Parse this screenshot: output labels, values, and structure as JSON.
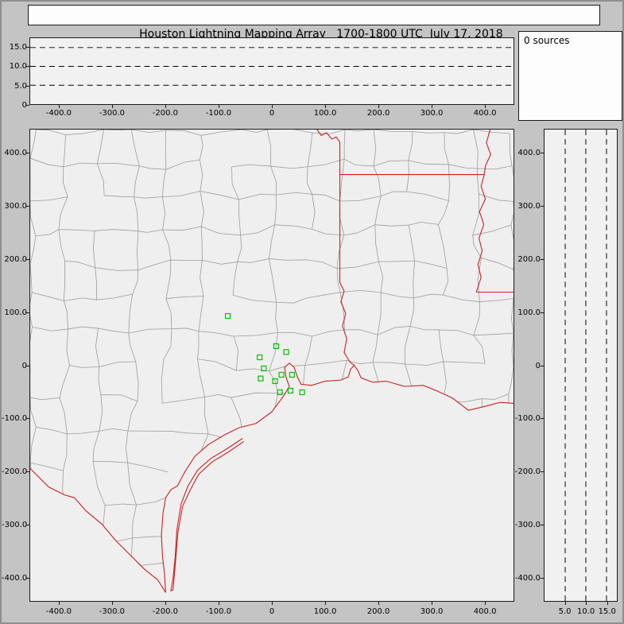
{
  "title": "Houston Lightning Mapping Array   1700-1800 UTC  July 17, 2018",
  "sources_panel": {
    "label": "0 sources",
    "count": 0
  },
  "colors": {
    "window_bg": "#c4c4c4",
    "panel_bg": "#f1f1f1",
    "panel_border": "#1a1a1a",
    "county_line": "#9c9c9c",
    "state_line": "#cc2020",
    "station": "#00c000",
    "gridline": "#000000"
  },
  "chart_data": [
    {
      "name": "altitude-vs-east-west",
      "type": "scatter",
      "xlim": [
        -455,
        455
      ],
      "ylim": [
        0,
        17.5
      ],
      "x_tick_values": [
        -400,
        -300,
        -200,
        -100,
        0,
        100,
        200,
        300,
        400
      ],
      "x_tick_labels": [
        "-400.0",
        "-300.0",
        "-200.0",
        "-100.0",
        "0",
        "100.0",
        "200.0",
        "300.0",
        "400.0"
      ],
      "y_tick_values": [
        15,
        10,
        5,
        0
      ],
      "y_tick_labels": [
        "15.0",
        "10.0",
        "5.0",
        "0"
      ],
      "gridlines": [
        5,
        10,
        15
      ],
      "grid_style": "dashed",
      "points": [],
      "sources": 0
    },
    {
      "name": "plan-view-map",
      "type": "scatter",
      "xlim": [
        -455,
        455
      ],
      "ylim": [
        -445,
        445
      ],
      "x_tick_values": [
        -400,
        -300,
        -200,
        -100,
        0,
        100,
        200,
        300,
        400
      ],
      "x_tick_labels": [
        "-400.0",
        "-300.0",
        "-200.0",
        "-100.0",
        "0",
        "100.0",
        "200.0",
        "300.0",
        "400.0"
      ],
      "y_tick_values": [
        400,
        300,
        200,
        100,
        0,
        -100,
        -200,
        -300,
        -400
      ],
      "y_tick_labels": [
        "400.0",
        "300.0",
        "200.0",
        "100.0",
        "0",
        "-100.0",
        "-200.0",
        "-300.0",
        "-400.0"
      ],
      "points": [],
      "stations_km": [
        [
          -83,
          93
        ],
        [
          8,
          36
        ],
        [
          -23,
          15
        ],
        [
          27,
          25
        ],
        [
          -15,
          -6
        ],
        [
          -21,
          -25
        ],
        [
          6,
          -30
        ],
        [
          18,
          -18
        ],
        [
          38,
          -18
        ],
        [
          15,
          -51
        ],
        [
          35,
          -48
        ],
        [
          57,
          -51
        ]
      ],
      "map_features_km": {
        "land_outline": [
          [
            -455,
            445
          ],
          [
            455,
            445
          ],
          [
            455,
            -72
          ],
          [
            430,
            -70
          ],
          [
            400,
            -78
          ],
          [
            370,
            -85
          ],
          [
            340,
            -62
          ],
          [
            310,
            -48
          ],
          [
            285,
            -38
          ],
          [
            250,
            -40
          ],
          [
            215,
            -30
          ],
          [
            190,
            -32
          ],
          [
            168,
            -24
          ],
          [
            162,
            -10
          ],
          [
            155,
            0
          ],
          [
            148,
            -8
          ],
          [
            144,
            -22
          ],
          [
            130,
            -28
          ],
          [
            100,
            -30
          ],
          [
            75,
            -38
          ],
          [
            55,
            -36
          ],
          [
            48,
            -22
          ],
          [
            42,
            -4
          ],
          [
            33,
            4
          ],
          [
            24,
            -4
          ],
          [
            27,
            -24
          ],
          [
            33,
            -40
          ],
          [
            22,
            -58
          ],
          [
            0,
            -88
          ],
          [
            -30,
            -110
          ],
          [
            -62,
            -118
          ],
          [
            -90,
            -132
          ],
          [
            -120,
            -150
          ],
          [
            -145,
            -172
          ],
          [
            -163,
            -200
          ],
          [
            -178,
            -228
          ],
          [
            -190,
            -235
          ],
          [
            -200,
            -250
          ],
          [
            -205,
            -280
          ],
          [
            -208,
            -320
          ],
          [
            -206,
            -360
          ],
          [
            -202,
            -395
          ],
          [
            -200,
            -429
          ],
          [
            -215,
            -405
          ],
          [
            -240,
            -385
          ],
          [
            -270,
            -355
          ],
          [
            -295,
            -330
          ],
          [
            -320,
            -300
          ],
          [
            -350,
            -275
          ],
          [
            -372,
            -250
          ],
          [
            -390,
            -245
          ],
          [
            -420,
            -230
          ],
          [
            -455,
            -195
          ]
        ],
        "coastline": [
          [
            455,
            -72
          ],
          [
            430,
            -70
          ],
          [
            400,
            -78
          ],
          [
            370,
            -85
          ],
          [
            340,
            -62
          ],
          [
            310,
            -48
          ],
          [
            285,
            -38
          ],
          [
            250,
            -40
          ],
          [
            215,
            -30
          ],
          [
            190,
            -32
          ],
          [
            168,
            -24
          ],
          [
            162,
            -10
          ],
          [
            155,
            0
          ],
          [
            148,
            -8
          ],
          [
            144,
            -22
          ],
          [
            130,
            -28
          ],
          [
            100,
            -30
          ],
          [
            75,
            -38
          ],
          [
            55,
            -36
          ],
          [
            48,
            -22
          ],
          [
            42,
            -4
          ],
          [
            33,
            4
          ],
          [
            24,
            -4
          ],
          [
            27,
            -24
          ],
          [
            33,
            -40
          ],
          [
            22,
            -58
          ],
          [
            0,
            -88
          ],
          [
            -30,
            -110
          ],
          [
            -62,
            -118
          ],
          [
            -90,
            -132
          ],
          [
            -120,
            -150
          ],
          [
            -145,
            -172
          ],
          [
            -163,
            -200
          ],
          [
            -178,
            -228
          ],
          [
            -190,
            -235
          ],
          [
            -200,
            -250
          ],
          [
            -205,
            -280
          ],
          [
            -208,
            -320
          ],
          [
            -206,
            -360
          ],
          [
            -202,
            -395
          ],
          [
            -200,
            -429
          ]
        ],
        "rio_grande": [
          [
            -200,
            -429
          ],
          [
            -215,
            -405
          ],
          [
            -240,
            -385
          ],
          [
            -270,
            -355
          ],
          [
            -295,
            -330
          ],
          [
            -320,
            -300
          ],
          [
            -350,
            -275
          ],
          [
            -372,
            -250
          ],
          [
            -390,
            -245
          ],
          [
            -420,
            -230
          ],
          [
            -455,
            -195
          ]
        ],
        "barrier_islands": [
          [
            -55,
            -138
          ],
          [
            -85,
            -158
          ],
          [
            -115,
            -176
          ],
          [
            -140,
            -198
          ],
          [
            -158,
            -228
          ],
          [
            -171,
            -262
          ],
          [
            -179,
            -312
          ],
          [
            -182,
            -362
          ],
          [
            -186,
            -402
          ],
          [
            -190,
            -426
          ],
          [
            -186,
            -424
          ],
          [
            -181,
            -366
          ],
          [
            -177,
            -316
          ],
          [
            -168,
            -266
          ],
          [
            -154,
            -236
          ],
          [
            -138,
            -206
          ],
          [
            -112,
            -182
          ],
          [
            -82,
            -164
          ],
          [
            -53,
            -144
          ]
        ],
        "red_river": [
          [
            85,
            445
          ],
          [
            93,
            434
          ],
          [
            103,
            439
          ],
          [
            113,
            427
          ],
          [
            121,
            431
          ],
          [
            128,
            421
          ]
        ],
        "tx_la_border": [
          [
            128,
            421
          ],
          [
            128,
            156
          ]
        ],
        "sabine_river": [
          [
            128,
            156
          ],
          [
            136,
            140
          ],
          [
            130,
            120
          ],
          [
            139,
            98
          ],
          [
            133,
            74
          ],
          [
            141,
            50
          ],
          [
            136,
            24
          ],
          [
            147,
            6
          ],
          [
            155,
            0
          ]
        ],
        "ar_la_border": [
          [
            128,
            360
          ],
          [
            400,
            360
          ]
        ],
        "mississippi_river": [
          [
            411,
            445
          ],
          [
            404,
            420
          ],
          [
            412,
            398
          ],
          [
            402,
            376
          ],
          [
            400,
            360
          ],
          [
            394,
            338
          ],
          [
            402,
            314
          ],
          [
            391,
            290
          ],
          [
            399,
            266
          ],
          [
            390,
            240
          ],
          [
            396,
            216
          ],
          [
            388,
            190
          ],
          [
            394,
            166
          ],
          [
            385,
            138
          ]
        ],
        "la_ms_border": [
          [
            385,
            138
          ],
          [
            455,
            138
          ]
        ]
      }
    },
    {
      "name": "altitude-vs-north-south",
      "type": "scatter",
      "xlim": [
        0,
        17.5
      ],
      "ylim": [
        -445,
        445
      ],
      "x_tick_values": [
        5,
        10,
        15
      ],
      "x_tick_labels": [
        "5.0",
        "10.0",
        "15.0"
      ],
      "y_tick_values": [
        400,
        300,
        200,
        100,
        0,
        -100,
        -200,
        -300,
        -400
      ],
      "y_tick_labels": [
        "400.0",
        "300.0",
        "200.0",
        "100.0",
        "0",
        "-100.0",
        "-200.0",
        "-300.0",
        "-400.0"
      ],
      "gridlines": [
        5,
        10,
        15
      ],
      "grid_style": "dashed",
      "points": [],
      "sources": 0
    }
  ]
}
